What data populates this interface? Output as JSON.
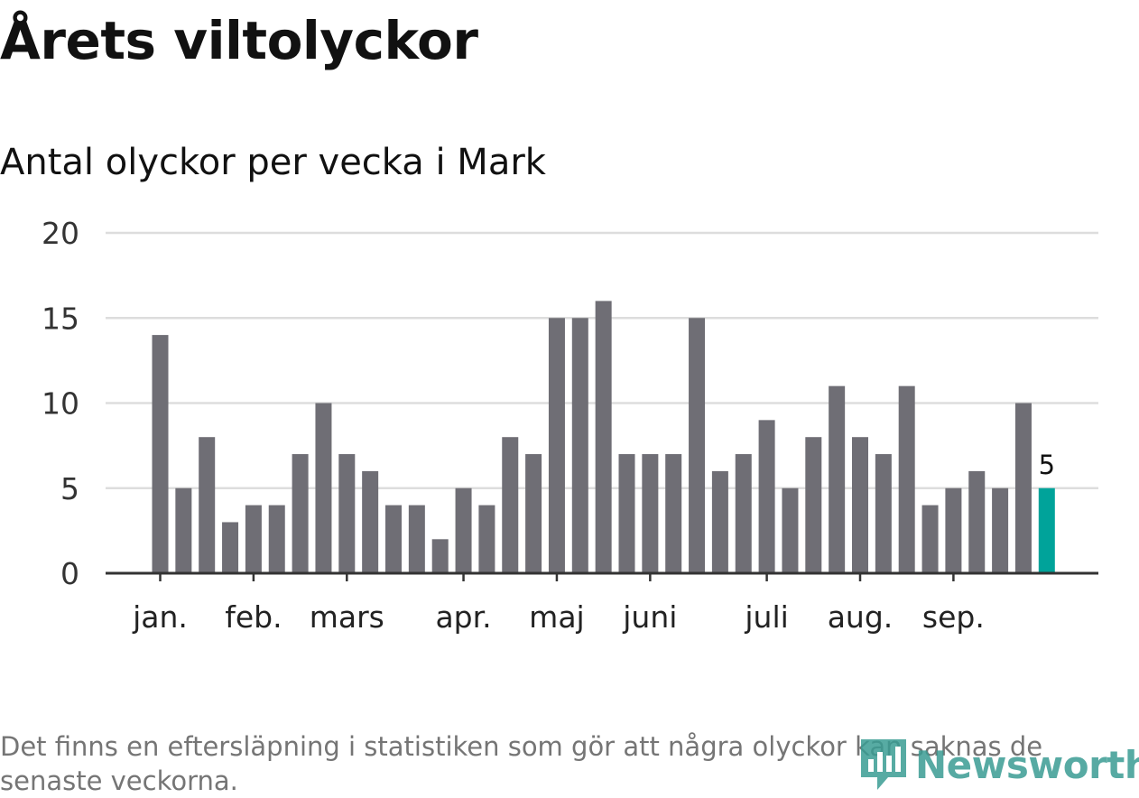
{
  "header": {
    "title": "Årets viltolyckor",
    "subtitle": "Antal olyckor per vecka i Mark"
  },
  "footer": {
    "note": "Det finns en eftersläpning i statistiken som gör att några olyckor kan saknas de senaste veckorna.",
    "logo_text": "Newsworthy"
  },
  "colors": {
    "bar": "#6f6e75",
    "highlight": "#00a39a",
    "grid": "#dddddd",
    "axis": "#333333",
    "logo": "#3a9c93"
  },
  "chart_data": {
    "type": "bar",
    "title": "Antal olyckor per vecka i Mark",
    "xlabel": "",
    "ylabel": "",
    "ylim": [
      0,
      20
    ],
    "yticks": [
      0,
      5,
      10,
      15,
      20
    ],
    "grid": true,
    "values": [
      14,
      5,
      8,
      3,
      4,
      4,
      7,
      10,
      7,
      6,
      4,
      4,
      2,
      5,
      4,
      8,
      7,
      15,
      15,
      16,
      7,
      7,
      7,
      15,
      6,
      7,
      9,
      5,
      8,
      11,
      8,
      7,
      11,
      4,
      5,
      6,
      5,
      10,
      5
    ],
    "highlight_index": 38,
    "highlight_label": "5",
    "month_labels": [
      {
        "label": "jan.",
        "bar_index": 0
      },
      {
        "label": "feb.",
        "bar_index": 4
      },
      {
        "label": "mars",
        "bar_index": 8
      },
      {
        "label": "apr.",
        "bar_index": 13
      },
      {
        "label": "maj",
        "bar_index": 17
      },
      {
        "label": "juni",
        "bar_index": 21
      },
      {
        "label": "juli",
        "bar_index": 26
      },
      {
        "label": "aug.",
        "bar_index": 30
      },
      {
        "label": "sep.",
        "bar_index": 34
      }
    ]
  }
}
